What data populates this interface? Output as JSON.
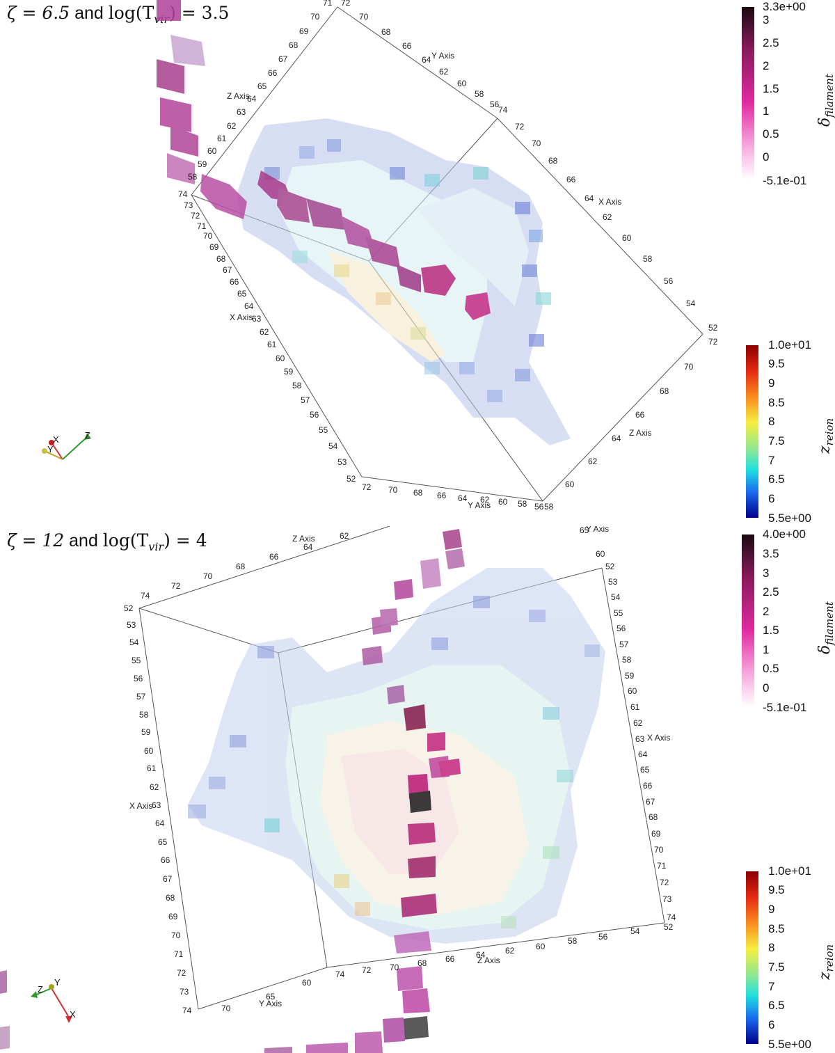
{
  "panels": [
    {
      "title_zeta": "ζ = 6.5",
      "title_and": " and ",
      "title_tvir": "log(T",
      "title_sub": "vir",
      "title_end": ") = 3.5",
      "axis_labels": {
        "x_left": "X Axis",
        "x_right": "X Axis",
        "y_top": "Y Axis",
        "y_bottom": "Y Axis",
        "z_left": "Z Axis",
        "z_right": "Z Axis"
      },
      "ticks": {
        "top_y": [
          "72",
          "70",
          "68",
          "66",
          "64",
          "62",
          "60",
          "58",
          "56"
        ],
        "top_left_z": [
          "71",
          "70",
          "69",
          "68",
          "67",
          "66",
          "65",
          "64",
          "63",
          "62",
          "61",
          "60",
          "59",
          "58"
        ],
        "right_x": [
          "74",
          "72",
          "70",
          "68",
          "66",
          "64",
          "62",
          "60",
          "58",
          "56",
          "54",
          "52"
        ],
        "right_z": [
          "72",
          "70",
          "68",
          "66",
          "64",
          "62",
          "60",
          "58"
        ],
        "left_x": [
          "74",
          "73",
          "72",
          "71",
          "70",
          "69",
          "68",
          "67",
          "66",
          "65",
          "64",
          "63",
          "62",
          "61",
          "60",
          "59",
          "58",
          "57",
          "56",
          "55",
          "54",
          "53",
          "52"
        ],
        "bottom_y": [
          "72",
          "70",
          "68",
          "66",
          "64",
          "62",
          "60",
          "58",
          "56"
        ]
      },
      "colorbar_filament": {
        "title": "δ",
        "title_sub": "filament",
        "labels": [
          "3.3e+00",
          "3",
          "2.5",
          "2",
          "1.5",
          "1",
          "0.5",
          "0",
          "-5.1e-01"
        ]
      },
      "colorbar_zreion": {
        "title": "z",
        "title_sub": "reion",
        "labels": [
          "1.0e+01",
          "9.5",
          "9",
          "8.5",
          "8",
          "7.5",
          "7",
          "6.5",
          "6",
          "5.5e+00"
        ]
      },
      "triad": {
        "x": "X",
        "y": "Y",
        "z": "Z"
      }
    },
    {
      "title_zeta": "ζ = 12",
      "title_and": " and ",
      "title_tvir": "log(T",
      "title_sub": "vir",
      "title_end": ") = 4",
      "axis_labels": {
        "x_left": "X Axis",
        "x_right": "X Axis",
        "y_bottom": "Y Axis",
        "z_top": "Z Axis",
        "z_bottom": "Z Axis",
        "y_top": "Y Axis"
      },
      "ticks": {
        "top_z": [
          "74",
          "72",
          "70",
          "68",
          "66",
          "64",
          "62"
        ],
        "left_x": [
          "52",
          "53",
          "54",
          "55",
          "56",
          "57",
          "58",
          "59",
          "60",
          "61",
          "62",
          "63",
          "64",
          "65",
          "66",
          "67",
          "68",
          "69",
          "70",
          "71",
          "72",
          "73",
          "74"
        ],
        "right_x": [
          "52",
          "53",
          "54",
          "55",
          "56",
          "57",
          "58",
          "59",
          "60",
          "61",
          "62",
          "63",
          "64",
          "65",
          "66",
          "67",
          "68",
          "69",
          "70",
          "71",
          "72",
          "73",
          "74"
        ],
        "bottom_z": [
          "74",
          "72",
          "70",
          "68",
          "66",
          "64",
          "62",
          "60",
          "58",
          "56",
          "54",
          "52"
        ],
        "bottom_y": [
          "70",
          "65",
          "60"
        ],
        "top_y": [
          "65",
          "60"
        ]
      },
      "colorbar_filament": {
        "title": "δ",
        "title_sub": "filament",
        "labels": [
          "4.0e+00",
          "3.5",
          "3",
          "2.5",
          "2",
          "1.5",
          "1",
          "0.5",
          "0",
          "-5.1e-01"
        ]
      },
      "colorbar_zreion": {
        "title": "z",
        "title_sub": "reion",
        "labels": [
          "1.0e+01",
          "9.5",
          "9",
          "8.5",
          "8",
          "7.5",
          "7",
          "6.5",
          "6",
          "5.5e+00"
        ]
      },
      "triad": {
        "x": "X",
        "y": "Y",
        "z": "Z"
      }
    }
  ],
  "colors": {
    "filament_high": "#2a0a14",
    "filament_mid": "#c2137e",
    "filament_low": "#ffd9f0",
    "reion_high": "#8b0000",
    "reion_mid": "#f5e64a",
    "reion_low": "#00008b",
    "voxel_pink": "#b0409a",
    "voxel_blue": "#aab4e6",
    "voxel_cyan": "#b4e6e6",
    "voxel_cream": "#f4ecd2"
  }
}
